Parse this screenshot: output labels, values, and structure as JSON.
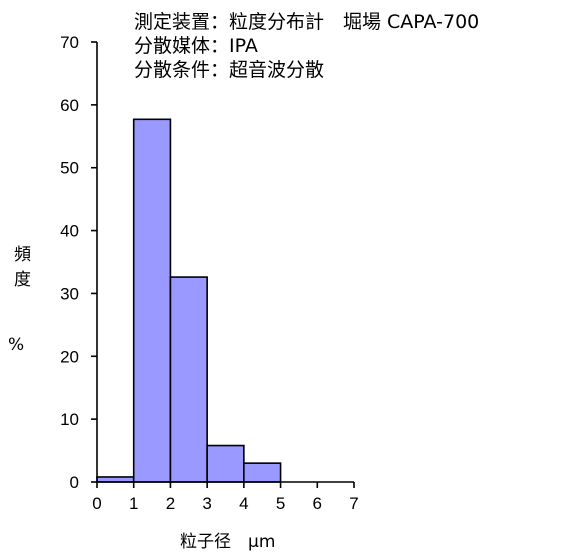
{
  "chart_data": {
    "type": "bar",
    "title": "",
    "annotations": [
      "測定装置：粒度分布計　堀場 CAPA-700",
      "分散媒体：IPA",
      "分散条件：超音波分散"
    ],
    "xlabel": "粒子径　μm",
    "ylabel_chars": [
      "頻",
      "度"
    ],
    "ylabel_unit": "%",
    "xlim": [
      0,
      7
    ],
    "ylim": [
      0,
      70
    ],
    "xticks": [
      0,
      1,
      2,
      3,
      4,
      5,
      6,
      7
    ],
    "yticks": [
      0,
      10,
      20,
      30,
      40,
      50,
      60,
      70
    ],
    "bins": [
      {
        "from": 0,
        "to": 1,
        "value": 0.8
      },
      {
        "from": 1,
        "to": 2,
        "value": 57.7
      },
      {
        "from": 2,
        "to": 3,
        "value": 32.6
      },
      {
        "from": 3,
        "to": 4,
        "value": 5.8
      },
      {
        "from": 4,
        "to": 5,
        "value": 3.0
      }
    ],
    "bar_color": "#9999ff",
    "grid": false
  }
}
